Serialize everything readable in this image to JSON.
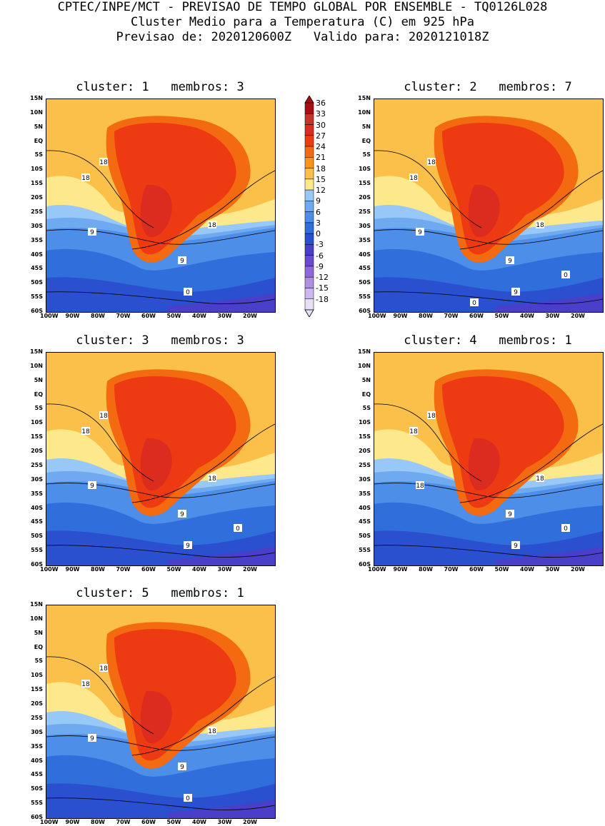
{
  "header": {
    "line1": "CPTEC/INPE/MCT - PREVISAO DE TEMPO GLOBAL POR ENSEMBLE - TQ0126L028",
    "line2": "Cluster Medio para a Temperatura (C) em 925 hPa",
    "line3": "Previsao de: 2020120600Z   Valido para: 2020121018Z"
  },
  "lat_labels": [
    "15N",
    "10N",
    "5N",
    "EQ",
    "5S",
    "10S",
    "15S",
    "20S",
    "25S",
    "30S",
    "35S",
    "40S",
    "45S",
    "50S",
    "55S",
    "60S"
  ],
  "lon_labels": [
    "100W",
    "90W",
    "80W",
    "70W",
    "60W",
    "50W",
    "40W",
    "30W",
    "20W"
  ],
  "colorbar": {
    "levels": [
      "36",
      "33",
      "30",
      "27",
      "24",
      "21",
      "18",
      "15",
      "12",
      "9",
      "6",
      "3",
      "0",
      "-3",
      "-6",
      "-9",
      "-12",
      "-15",
      "-18"
    ],
    "colors": [
      "#a50f15",
      "#c4342a",
      "#dc2b1f",
      "#ee3a12",
      "#f36a10",
      "#f99618",
      "#fbc04a",
      "#fde88c",
      "#98c8f7",
      "#6faaf0",
      "#4c8ee8",
      "#2f6edb",
      "#2a4fcf",
      "#4a3fc8",
      "#6a4bd0",
      "#8e6ad8",
      "#ae90e2",
      "#cdb7ef",
      "#e8dff7"
    ]
  },
  "panels": [
    {
      "title": "cluster: 1   membros: 3",
      "contours": [
        "18",
        "18",
        "18",
        "9",
        "9",
        "0"
      ]
    },
    {
      "title": "cluster: 2   membros: 7",
      "contours": [
        "18",
        "18",
        "18",
        "9",
        "9",
        "9",
        "0",
        "0"
      ]
    },
    {
      "title": "cluster: 3   membros: 3",
      "contours": [
        "18",
        "18",
        "18",
        "9",
        "9",
        "9",
        "0"
      ]
    },
    {
      "title": "cluster: 4   membros: 1",
      "contours": [
        "18",
        "18",
        "18",
        "18",
        "9",
        "9",
        "0"
      ]
    },
    {
      "title": "cluster: 5   membros: 1",
      "contours": [
        "18",
        "18",
        "18",
        "9",
        "9",
        "0"
      ]
    }
  ]
}
